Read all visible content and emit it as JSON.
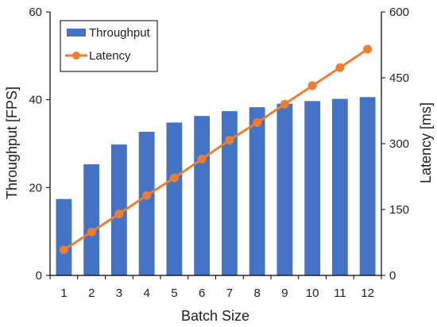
{
  "chart_data": {
    "type": "bar",
    "categories": [
      "1",
      "2",
      "3",
      "4",
      "5",
      "6",
      "7",
      "8",
      "9",
      "10",
      "11",
      "12"
    ],
    "series": [
      {
        "name": "Throughput",
        "type": "bar",
        "axis": "left",
        "values": [
          17.4,
          25.3,
          29.8,
          32.7,
          34.8,
          36.3,
          37.4,
          38.3,
          39.1,
          39.7,
          40.2,
          40.6
        ],
        "color": "#4472C4"
      },
      {
        "name": "Latency",
        "type": "line",
        "axis": "right",
        "values": [
          58,
          99,
          140,
          182,
          222,
          265,
          308,
          348,
          390,
          432,
          473,
          515
        ],
        "color": "#ED7D31"
      }
    ],
    "xlabel": "Batch Size",
    "ylabel": "Throughput [FPS]",
    "y2label": "Latency [ms]",
    "ylim": [
      0,
      60
    ],
    "y2lim": [
      0,
      600
    ],
    "yticks": [
      "0",
      "20",
      "40",
      "60"
    ],
    "y2ticks": [
      "0",
      "150",
      "300",
      "450",
      "600"
    ],
    "grid": false,
    "legend": "top-left"
  }
}
